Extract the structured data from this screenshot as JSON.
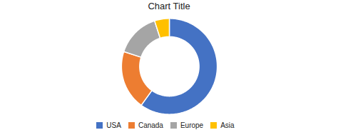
{
  "chart_data": {
    "type": "donut",
    "title": "Chart Title",
    "categories": [
      "USA",
      "Canada",
      "Europe",
      "Asia"
    ],
    "values": [
      60,
      20,
      15,
      5
    ],
    "colors": [
      "#4472C4",
      "#ED7D31",
      "#A5A5A5",
      "#FFC000"
    ],
    "legend": "bottom"
  }
}
